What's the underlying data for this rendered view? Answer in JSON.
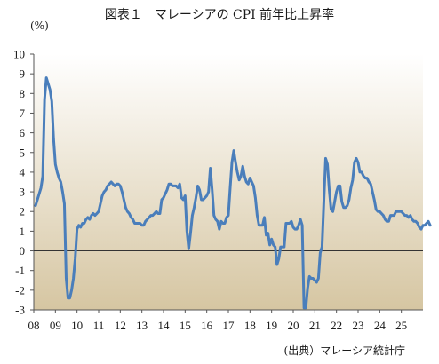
{
  "title": "図表１　マレーシアの CPI 前年比上昇率",
  "unit": "(%)",
  "source": "(出典）マレーシア統計庁",
  "colors": {
    "line": "#4a7ebb",
    "plot_top": "#ffffff",
    "plot_bottom": "#d6c6a2",
    "zero_line": "#333333"
  },
  "chart_data": {
    "type": "line",
    "title": "図表１　マレーシアの CPI 前年比上昇率",
    "xlabel": "",
    "ylabel": "(%)",
    "ylim": [
      -3,
      10
    ],
    "yticks": [
      10,
      9,
      8,
      7,
      6,
      5,
      4,
      3,
      2,
      1,
      0,
      -1,
      -2,
      -3
    ],
    "xticks": [
      "08",
      "09",
      "10",
      "11",
      "12",
      "13",
      "14",
      "15",
      "16",
      "17",
      "18",
      "19",
      "20",
      "21",
      "22",
      "23",
      "24",
      "25"
    ],
    "x_start_year": 2008,
    "grid": false,
    "series": [
      {
        "name": "",
        "values": [
          2.3,
          2.6,
          2.9,
          3.2,
          3.8,
          7.7,
          8.8,
          8.5,
          8.2,
          7.6,
          5.7,
          4.4,
          4.0,
          3.7,
          3.5,
          3.0,
          2.4,
          -1.4,
          -2.4,
          -2.4,
          -2.0,
          -1.4,
          -0.4,
          1.1,
          1.3,
          1.2,
          1.4,
          1.4,
          1.6,
          1.7,
          1.6,
          1.8,
          1.9,
          1.8,
          1.9,
          2.0,
          2.4,
          2.8,
          3.0,
          3.1,
          3.3,
          3.4,
          3.5,
          3.4,
          3.3,
          3.4,
          3.4,
          3.3,
          3.0,
          2.6,
          2.2,
          2.0,
          1.9,
          1.7,
          1.6,
          1.4,
          1.4,
          1.4,
          1.4,
          1.3,
          1.3,
          1.5,
          1.6,
          1.7,
          1.8,
          1.8,
          1.9,
          2.0,
          1.9,
          1.9,
          2.6,
          2.7,
          2.9,
          3.1,
          3.4,
          3.4,
          3.3,
          3.3,
          3.3,
          3.2,
          3.4,
          2.7,
          2.6,
          2.8,
          1.0,
          0.1,
          0.9,
          1.8,
          2.2,
          2.7,
          3.3,
          3.1,
          2.6,
          2.6,
          2.7,
          2.8,
          3.0,
          4.2,
          3.1,
          1.8,
          1.6,
          1.5,
          1.1,
          1.5,
          1.4,
          1.4,
          1.7,
          1.8,
          3.2,
          4.5,
          5.1,
          4.5,
          4.0,
          3.6,
          3.8,
          4.3,
          3.8,
          3.5,
          3.4,
          3.7,
          3.5,
          3.3,
          2.7,
          1.8,
          1.3,
          1.3,
          1.3,
          1.7,
          0.8,
          0.9,
          0.3,
          0.6,
          0.3,
          0.2,
          -0.7,
          -0.4,
          0.2,
          0.2,
          0.2,
          1.4,
          1.4,
          1.4,
          1.5,
          1.2,
          1.1,
          1.1,
          1.3,
          1.6,
          1.3,
          -2.9,
          -2.9,
          -1.9,
          -1.3,
          -1.4,
          -1.4,
          -1.5,
          -1.6,
          -1.4,
          -0.1,
          0.2,
          2.5,
          4.7,
          4.4,
          3.1,
          2.1,
          2.0,
          2.5,
          3.0,
          3.3,
          3.3,
          2.5,
          2.2,
          2.2,
          2.3,
          2.6,
          3.2,
          3.6,
          4.5,
          4.7,
          4.5,
          4.0,
          4.0,
          3.8,
          3.7,
          3.7,
          3.5,
          3.4,
          3.0,
          2.6,
          2.1,
          2.0,
          2.0,
          1.9,
          1.8,
          1.6,
          1.5,
          1.5,
          1.8,
          1.8,
          1.8,
          2.0,
          2.0,
          2.0,
          2.0,
          1.9,
          1.8,
          1.8,
          1.7,
          1.8,
          1.6,
          1.5,
          1.5,
          1.4,
          1.2,
          1.1,
          1.3,
          1.3,
          1.4,
          1.5,
          1.3
        ]
      }
    ]
  }
}
